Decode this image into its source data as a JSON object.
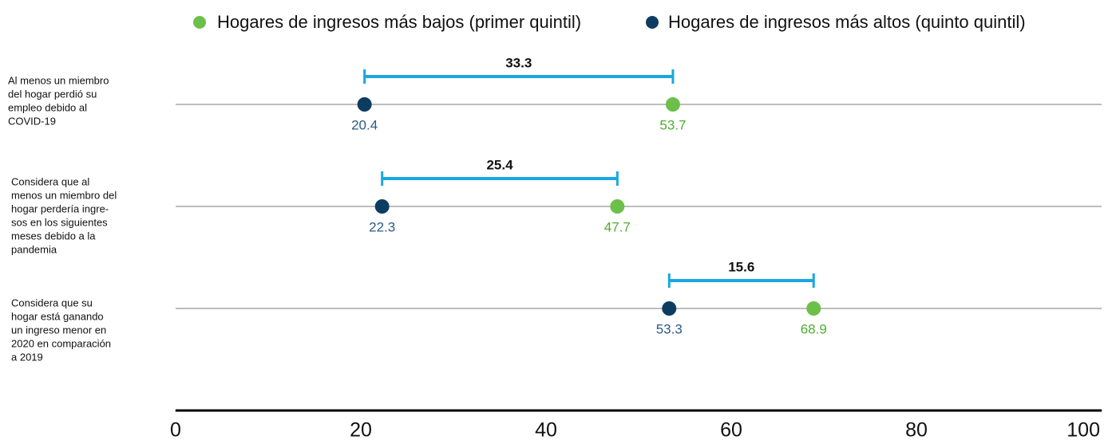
{
  "chart_data": {
    "type": "dumbbell",
    "categories": [
      [
        "Al menos un miembro",
        "del hogar perdió su",
        "empleo debido al",
        "COVID-19"
      ],
      [
        "Considera que al",
        "menos un miembro del",
        "hogar perdería ingre-",
        "sos en los siguientes",
        "meses debido a la",
        "pandemia"
      ],
      [
        "Considera que su",
        "hogar está ganando",
        "un ingreso menor en",
        "2020 en comparación",
        "a 2019"
      ]
    ],
    "series": [
      {
        "name": "Hogares de ingresos más bajos (primer quintil)",
        "color": "#6cc04a",
        "values": [
          53.7,
          47.7,
          68.9
        ]
      },
      {
        "name": "Hogares de ingresos más altos (quinto quintil)",
        "color": "#0d3c61",
        "values": [
          20.4,
          22.3,
          53.3
        ]
      }
    ],
    "gaps": [
      33.3,
      25.4,
      15.6
    ],
    "gap_color": "#1aa7e0",
    "xlim": [
      0,
      100
    ],
    "xticks": [
      0,
      20,
      40,
      60,
      80,
      100
    ]
  }
}
